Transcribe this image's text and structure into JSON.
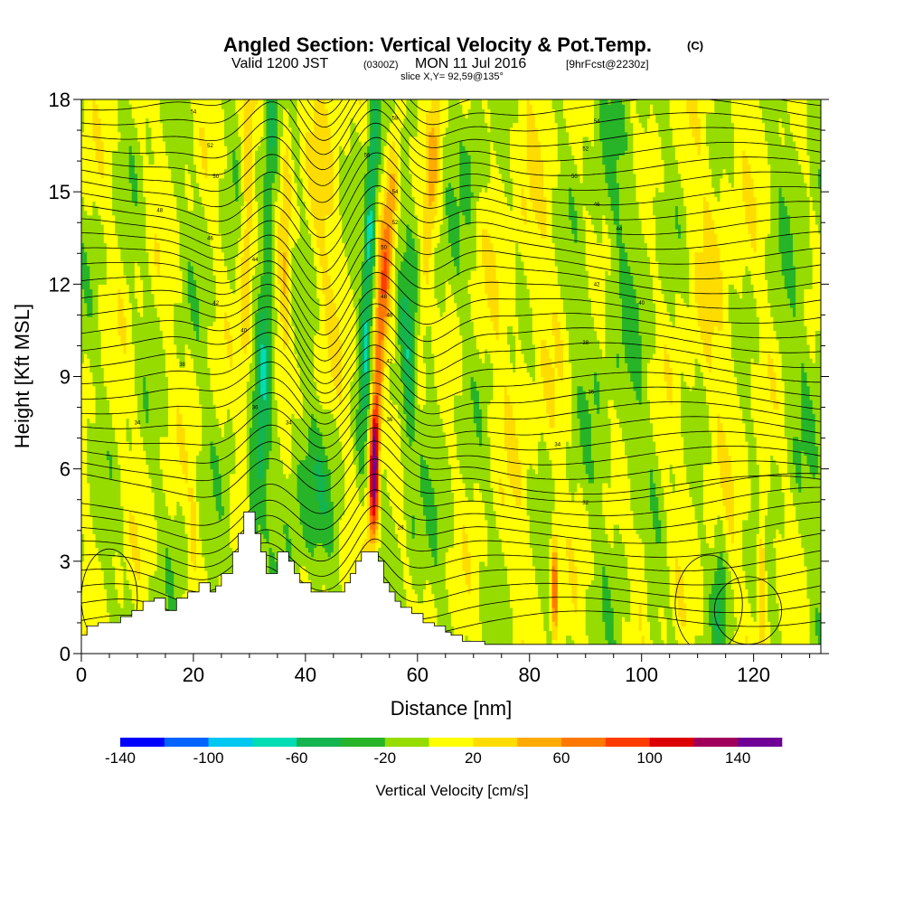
{
  "title": {
    "main": "Angled Section: Vertical Velocity & Pot.Temp.",
    "unit_tag": "(C)",
    "valid_label": "Valid 1200 JST",
    "utc_label": "(0300Z)",
    "date_label": "MON 11 Jul 2016",
    "forecast_tag": "[9hrFcst@2230z]",
    "slice_label": "slice X,Y= 92,59@135°"
  },
  "chart_data": {
    "type": "heatmap",
    "xlabel": "Distance [nm]",
    "ylabel": "Height [Kft MSL]",
    "xlim": [
      0,
      132
    ],
    "ylim": [
      0,
      18
    ],
    "x_ticks": [
      0,
      20,
      40,
      60,
      80,
      100,
      120
    ],
    "y_ticks": [
      0,
      3,
      6,
      9,
      12,
      15,
      18
    ],
    "colorbar": {
      "title": "Vertical Velocity [cm/s]",
      "levels": [
        -140,
        -120,
        -100,
        -80,
        -60,
        -40,
        -20,
        0,
        20,
        40,
        60,
        80,
        100,
        120,
        140,
        160
      ],
      "colors": [
        "#0000ff",
        "#0064ff",
        "#00c8f0",
        "#00dcb4",
        "#14b450",
        "#28b428",
        "#96dc00",
        "#ffff00",
        "#ffdc00",
        "#ffaa00",
        "#ff7800",
        "#ff3c00",
        "#dc0000",
        "#a0005a",
        "#6e0096"
      ],
      "tick_labels": [
        "-140",
        "-100",
        "-60",
        "-20",
        "20",
        "60",
        "100",
        "140"
      ]
    },
    "terrain_kft": [
      [
        0,
        0.6
      ],
      [
        1,
        0.9
      ],
      [
        3,
        1.0
      ],
      [
        5,
        1.0
      ],
      [
        7,
        1.2
      ],
      [
        9,
        1.4
      ],
      [
        11,
        1.7
      ],
      [
        13,
        1.8
      ],
      [
        15,
        1.4
      ],
      [
        16,
        1.4
      ],
      [
        17,
        1.8
      ],
      [
        19,
        2.0
      ],
      [
        21,
        2.3
      ],
      [
        22,
        2.3
      ],
      [
        23,
        2.0
      ],
      [
        24,
        2.2
      ],
      [
        25,
        2.6
      ],
      [
        26,
        2.6
      ],
      [
        27,
        3.3
      ],
      [
        28,
        3.9
      ],
      [
        29,
        4.6
      ],
      [
        30,
        4.6
      ],
      [
        31,
        3.9
      ],
      [
        32,
        3.3
      ],
      [
        33,
        2.6
      ],
      [
        34,
        2.6
      ],
      [
        35,
        3.3
      ],
      [
        36,
        3.3
      ],
      [
        37,
        3.0
      ],
      [
        38,
        2.6
      ],
      [
        39,
        2.3
      ],
      [
        40,
        2.3
      ],
      [
        41,
        2.0
      ],
      [
        42,
        2.0
      ],
      [
        43,
        2.0
      ],
      [
        44,
        2.0
      ],
      [
        45,
        2.0
      ],
      [
        46,
        2.0
      ],
      [
        47,
        2.3
      ],
      [
        48,
        2.6
      ],
      [
        49,
        3.0
      ],
      [
        50,
        3.3
      ],
      [
        51,
        3.3
      ],
      [
        52,
        3.3
      ],
      [
        53,
        3.0
      ],
      [
        54,
        2.3
      ],
      [
        55,
        2.0
      ],
      [
        56,
        1.7
      ],
      [
        57,
        1.5
      ],
      [
        58,
        1.5
      ],
      [
        59,
        1.3
      ],
      [
        60,
        1.3
      ],
      [
        61,
        1.0
      ],
      [
        62,
        1.0
      ],
      [
        63,
        0.9
      ],
      [
        64,
        0.9
      ],
      [
        65,
        0.7
      ],
      [
        66,
        0.6
      ],
      [
        67,
        0.6
      ],
      [
        68,
        0.4
      ],
      [
        69,
        0.4
      ],
      [
        70,
        0.4
      ],
      [
        71,
        0.4
      ],
      [
        72,
        0.3
      ],
      [
        80,
        0.3
      ],
      [
        100,
        0.3
      ],
      [
        132,
        0.3
      ]
    ],
    "theta_contours": [
      {
        "label": "34",
        "x": 10,
        "y": 7.5
      },
      {
        "label": "38",
        "x": 18,
        "y": 9.4
      },
      {
        "label": "42",
        "x": 24,
        "y": 11.4
      },
      {
        "label": "46",
        "x": 23,
        "y": 13.5
      },
      {
        "label": "48",
        "x": 14,
        "y": 14.4
      },
      {
        "label": "50",
        "x": 24,
        "y": 15.5
      },
      {
        "label": "52",
        "x": 23,
        "y": 16.5
      },
      {
        "label": "54",
        "x": 20,
        "y": 17.6
      },
      {
        "label": "34",
        "x": 85,
        "y": 6.8
      },
      {
        "label": "36",
        "x": 91,
        "y": 8.5
      },
      {
        "label": "38",
        "x": 90,
        "y": 10.1
      },
      {
        "label": "40",
        "x": 100,
        "y": 11.4
      },
      {
        "label": "42",
        "x": 92,
        "y": 12.0
      },
      {
        "label": "44",
        "x": 96,
        "y": 13.8
      },
      {
        "label": "46",
        "x": 92,
        "y": 14.6
      },
      {
        "label": "50",
        "x": 88,
        "y": 15.5
      },
      {
        "label": "52",
        "x": 90,
        "y": 16.4
      },
      {
        "label": "54",
        "x": 92,
        "y": 17.3
      },
      {
        "label": "28",
        "x": 57,
        "y": 4.1
      },
      {
        "label": "32",
        "x": 90,
        "y": 4.9
      },
      {
        "label": "34",
        "x": 37,
        "y": 7.5
      },
      {
        "label": "36",
        "x": 31,
        "y": 8.0
      },
      {
        "label": "40",
        "x": 29,
        "y": 10.5
      },
      {
        "label": "44",
        "x": 31,
        "y": 12.8
      },
      {
        "label": "36",
        "x": 55,
        "y": 7.6
      },
      {
        "label": "42",
        "x": 55,
        "y": 9.5
      },
      {
        "label": "46",
        "x": 55,
        "y": 11.0
      },
      {
        "label": "48",
        "x": 54,
        "y": 11.6
      },
      {
        "label": "50",
        "x": 54,
        "y": 13.2
      },
      {
        "label": "52",
        "x": 56,
        "y": 14.0
      },
      {
        "label": "54",
        "x": 56,
        "y": 15.0
      },
      {
        "label": "56",
        "x": 51,
        "y": 16.2
      },
      {
        "label": "58",
        "x": 56,
        "y": 17.4
      }
    ]
  }
}
